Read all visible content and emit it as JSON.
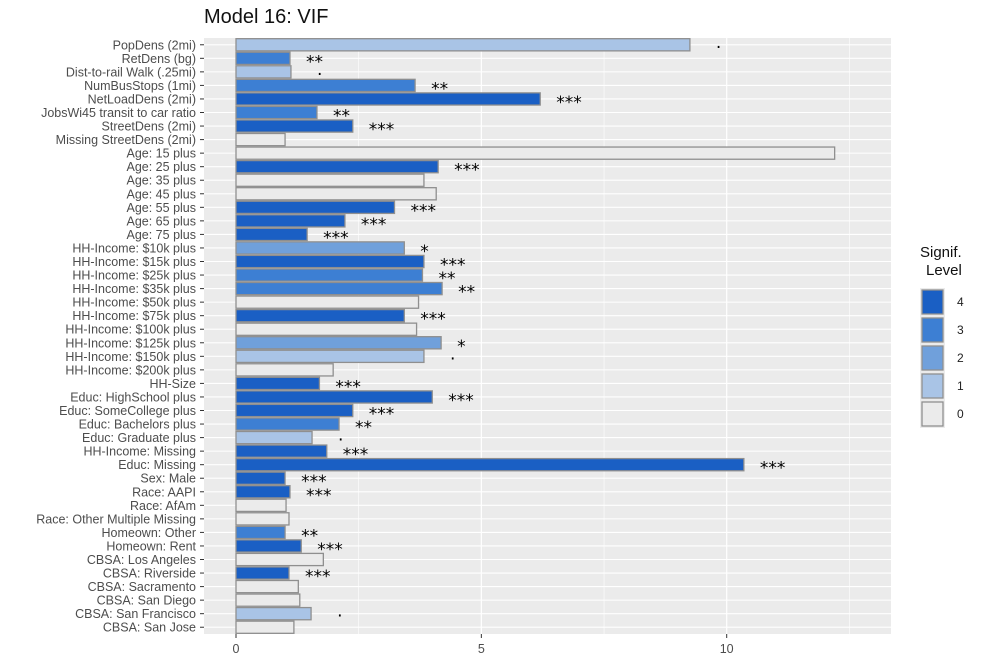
{
  "chart_data": {
    "type": "bar",
    "orientation": "horizontal",
    "title": "Model 16: VIF",
    "xlim": [
      0,
      13.4
    ],
    "x_ticks": [
      0,
      5,
      10
    ],
    "grid": true,
    "legend": {
      "title": "Signif.\nLevel",
      "title_lines": [
        "Signif.",
        "Level"
      ],
      "placement": "right",
      "levels": [
        "4",
        "3",
        "2",
        "1",
        "0"
      ],
      "colors": {
        "4": "#1a5fc4",
        "3": "#3d7fd3",
        "2": "#70a0db",
        "1": "#a9c4e6",
        "0": "#ebebeb"
      }
    },
    "categories": [
      "PopDens (2mi)",
      "RetDens (bg)",
      "Dist-to-rail Walk (.25mi)",
      "NumBusStops (1mi)",
      "NetLoadDens (2mi)",
      "JobsWi45 transit to car ratio",
      "StreetDens (2mi)",
      "Missing StreetDens (2mi)",
      "Age: 15 plus",
      "Age: 25 plus",
      "Age: 35 plus",
      "Age: 45 plus",
      "Age: 55 plus",
      "Age: 65 plus",
      "Age: 75 plus",
      "HH-Income:  $10k plus",
      "HH-Income:  $15k plus",
      "HH-Income:  $25k plus",
      "HH-Income:  $35k plus",
      "HH-Income:  $50k plus",
      "HH-Income:  $75k plus",
      "HH-Income: $100k plus",
      "HH-Income: $125k plus",
      "HH-Income: $150k plus",
      "HH-Income: $200k plus",
      "HH-Size",
      "Educ: HighSchool plus",
      "Educ: SomeCollege plus",
      "Educ: Bachelors plus",
      "Educ: Graduate plus",
      "HH-Income: Missing",
      "Educ: Missing",
      "Sex: Male",
      "Race: AAPI",
      "Race: AfAm",
      "Race: Other Multiple Missing",
      "Homeown: Other",
      "Homeown: Rent",
      "CBSA: Los Angeles",
      "CBSA: Riverside",
      "CBSA: Sacramento",
      "CBSA: San Diego",
      "CBSA: San Francisco",
      "CBSA: San Jose"
    ],
    "values": [
      9.25,
      1.1,
      1.12,
      3.65,
      6.2,
      1.65,
      2.38,
      1.0,
      12.2,
      4.12,
      3.83,
      4.08,
      3.23,
      2.22,
      1.45,
      3.43,
      3.83,
      3.8,
      4.2,
      3.72,
      3.43,
      3.68,
      4.18,
      3.83,
      1.98,
      1.7,
      4.0,
      2.38,
      2.1,
      1.55,
      1.85,
      10.35,
      1.0,
      1.1,
      1.02,
      1.08,
      1.0,
      1.33,
      1.78,
      1.08,
      1.27,
      1.3,
      1.53,
      1.18
    ],
    "signif_level": [
      1,
      3,
      1,
      3,
      4,
      3,
      4,
      0,
      0,
      4,
      0,
      0,
      4,
      4,
      4,
      2,
      4,
      3,
      3,
      0,
      4,
      0,
      2,
      1,
      0,
      4,
      4,
      4,
      3,
      1,
      4,
      4,
      4,
      4,
      0,
      0,
      3,
      4,
      0,
      4,
      0,
      0,
      1,
      0
    ],
    "signif_labels": [
      ".",
      "**",
      ".",
      "**",
      "***",
      "**",
      "***",
      "",
      "",
      "***",
      "",
      "",
      "***",
      "***",
      "***",
      "*",
      "***",
      "**",
      "**",
      "",
      "***",
      "",
      "*",
      ".",
      "",
      "***",
      "***",
      "***",
      "**",
      ".",
      "***",
      "***",
      "***",
      "***",
      "",
      "",
      "**",
      "***",
      "",
      "***",
      "",
      "",
      ".",
      ""
    ]
  }
}
